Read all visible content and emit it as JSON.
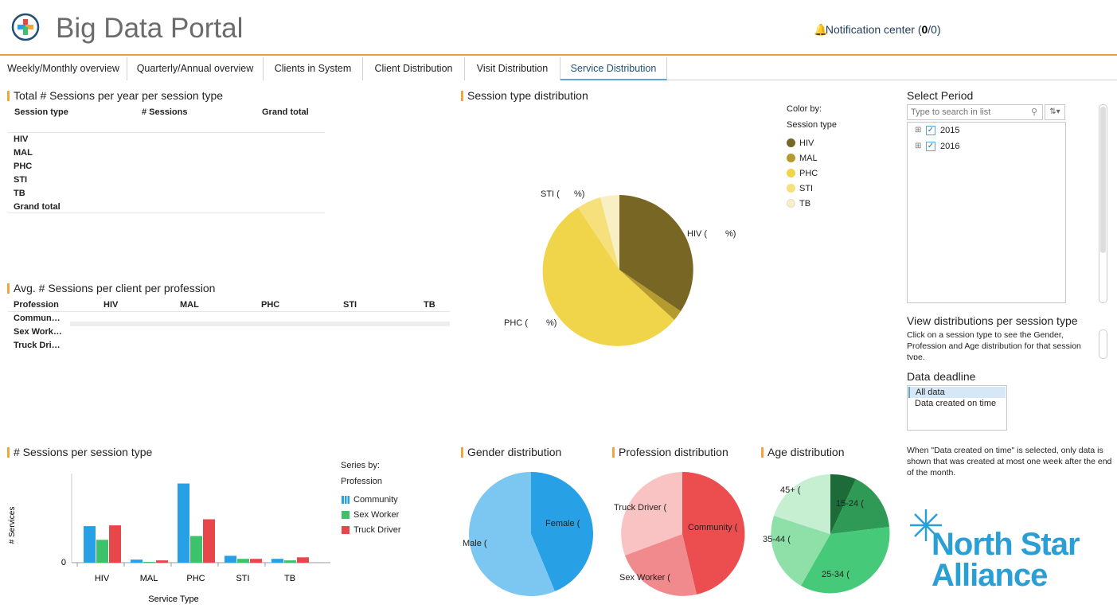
{
  "header": {
    "title": "Big Data Portal",
    "notif_prefix": "Notification center (",
    "notif_count": "0",
    "notif_suffix": "/0)"
  },
  "tabs": [
    {
      "label": "Weekly/Monthly overview"
    },
    {
      "label": "Quarterly/Annual overview"
    },
    {
      "label": "Clients in System"
    },
    {
      "label": "Client Distribution"
    },
    {
      "label": "Visit Distribution"
    },
    {
      "label": "Service Distribution"
    }
  ],
  "sessions_table": {
    "title": "Total # Sessions per year per session type",
    "col_session": "Session type",
    "col_sessions": "# Sessions",
    "col_grand": "Grand total",
    "rows": [
      "HIV",
      "MAL",
      "PHC",
      "STI",
      "TB",
      "Grand total"
    ]
  },
  "avg_table": {
    "title": "Avg. # Sessions per client per profession",
    "col_profession": "Profession",
    "cols": [
      "HIV",
      "MAL",
      "PHC",
      "STI",
      "TB"
    ],
    "rows": [
      "Commun…",
      "Sex Work…",
      "Truck Dri…"
    ]
  },
  "session_pie": {
    "title": "Session type distribution",
    "color_by": "Color by:",
    "color_field": "Session type",
    "legend": [
      "HIV",
      "MAL",
      "PHC",
      "STI",
      "TB"
    ],
    "labels": [
      "HIV (",
      "%)",
      "PHC (",
      "%)",
      "STI (",
      "%)"
    ],
    "colors": [
      "#7a6a22",
      "#b59a2e",
      "#f0d54a",
      "#f5e07c",
      "#f8efc4"
    ]
  },
  "select_period": {
    "title": "Select Period",
    "search_placeholder": "Type to search in list",
    "items": [
      "2015",
      "2016"
    ]
  },
  "view_dist": {
    "title": "View distributions per session type",
    "text": "Click on a session type to see the Gender, Profession and Age distribution for that session type."
  },
  "deadline": {
    "title": "Data deadline",
    "options": [
      "All data",
      "Data created on time"
    ],
    "note": "When \"Data created on time\" is selected, only data is shown that was created at most one week after the end of the month."
  },
  "bar_chart": {
    "title": "# Sessions per session type",
    "series_by": "Series by:",
    "series_field": "Profession",
    "legend": [
      "Community",
      "Sex Worker",
      "Truck Driver"
    ],
    "ylabel": "# Services",
    "xlabel": "Service Type",
    "zero_tick": "0"
  },
  "chart_data": {
    "type": "bar",
    "title": "# Sessions per session type",
    "xlabel": "Service Type",
    "ylabel": "# Services",
    "categories": [
      "HIV",
      "MAL",
      "PHC",
      "STI",
      "TB"
    ],
    "series": [
      {
        "name": "Community",
        "values": [
          48,
          4,
          104,
          9,
          5
        ],
        "color": "#27a0e6"
      },
      {
        "name": "Sex Worker",
        "values": [
          30,
          1,
          35,
          5,
          3
        ],
        "color": "#3cc26a"
      },
      {
        "name": "Truck Driver",
        "values": [
          49,
          3,
          57,
          5,
          7
        ],
        "color": "#e8474a"
      }
    ],
    "ylim": [
      0,
      115
    ]
  },
  "gender_pie": {
    "title": "Gender distribution",
    "labels": [
      "Female (",
      "Male ("
    ]
  },
  "profession_pie": {
    "title": "Profession distribution",
    "labels": [
      "Truck Driver (",
      "Community (",
      "Sex Worker ("
    ]
  },
  "age_pie": {
    "title": "Age distribution",
    "labels": [
      "45+ (",
      "15-24 (",
      "35-44 (",
      "25-34 ("
    ]
  },
  "brand": {
    "line1": "North Star",
    "line2": "Alliance",
    "color": "#2a9fd6"
  }
}
